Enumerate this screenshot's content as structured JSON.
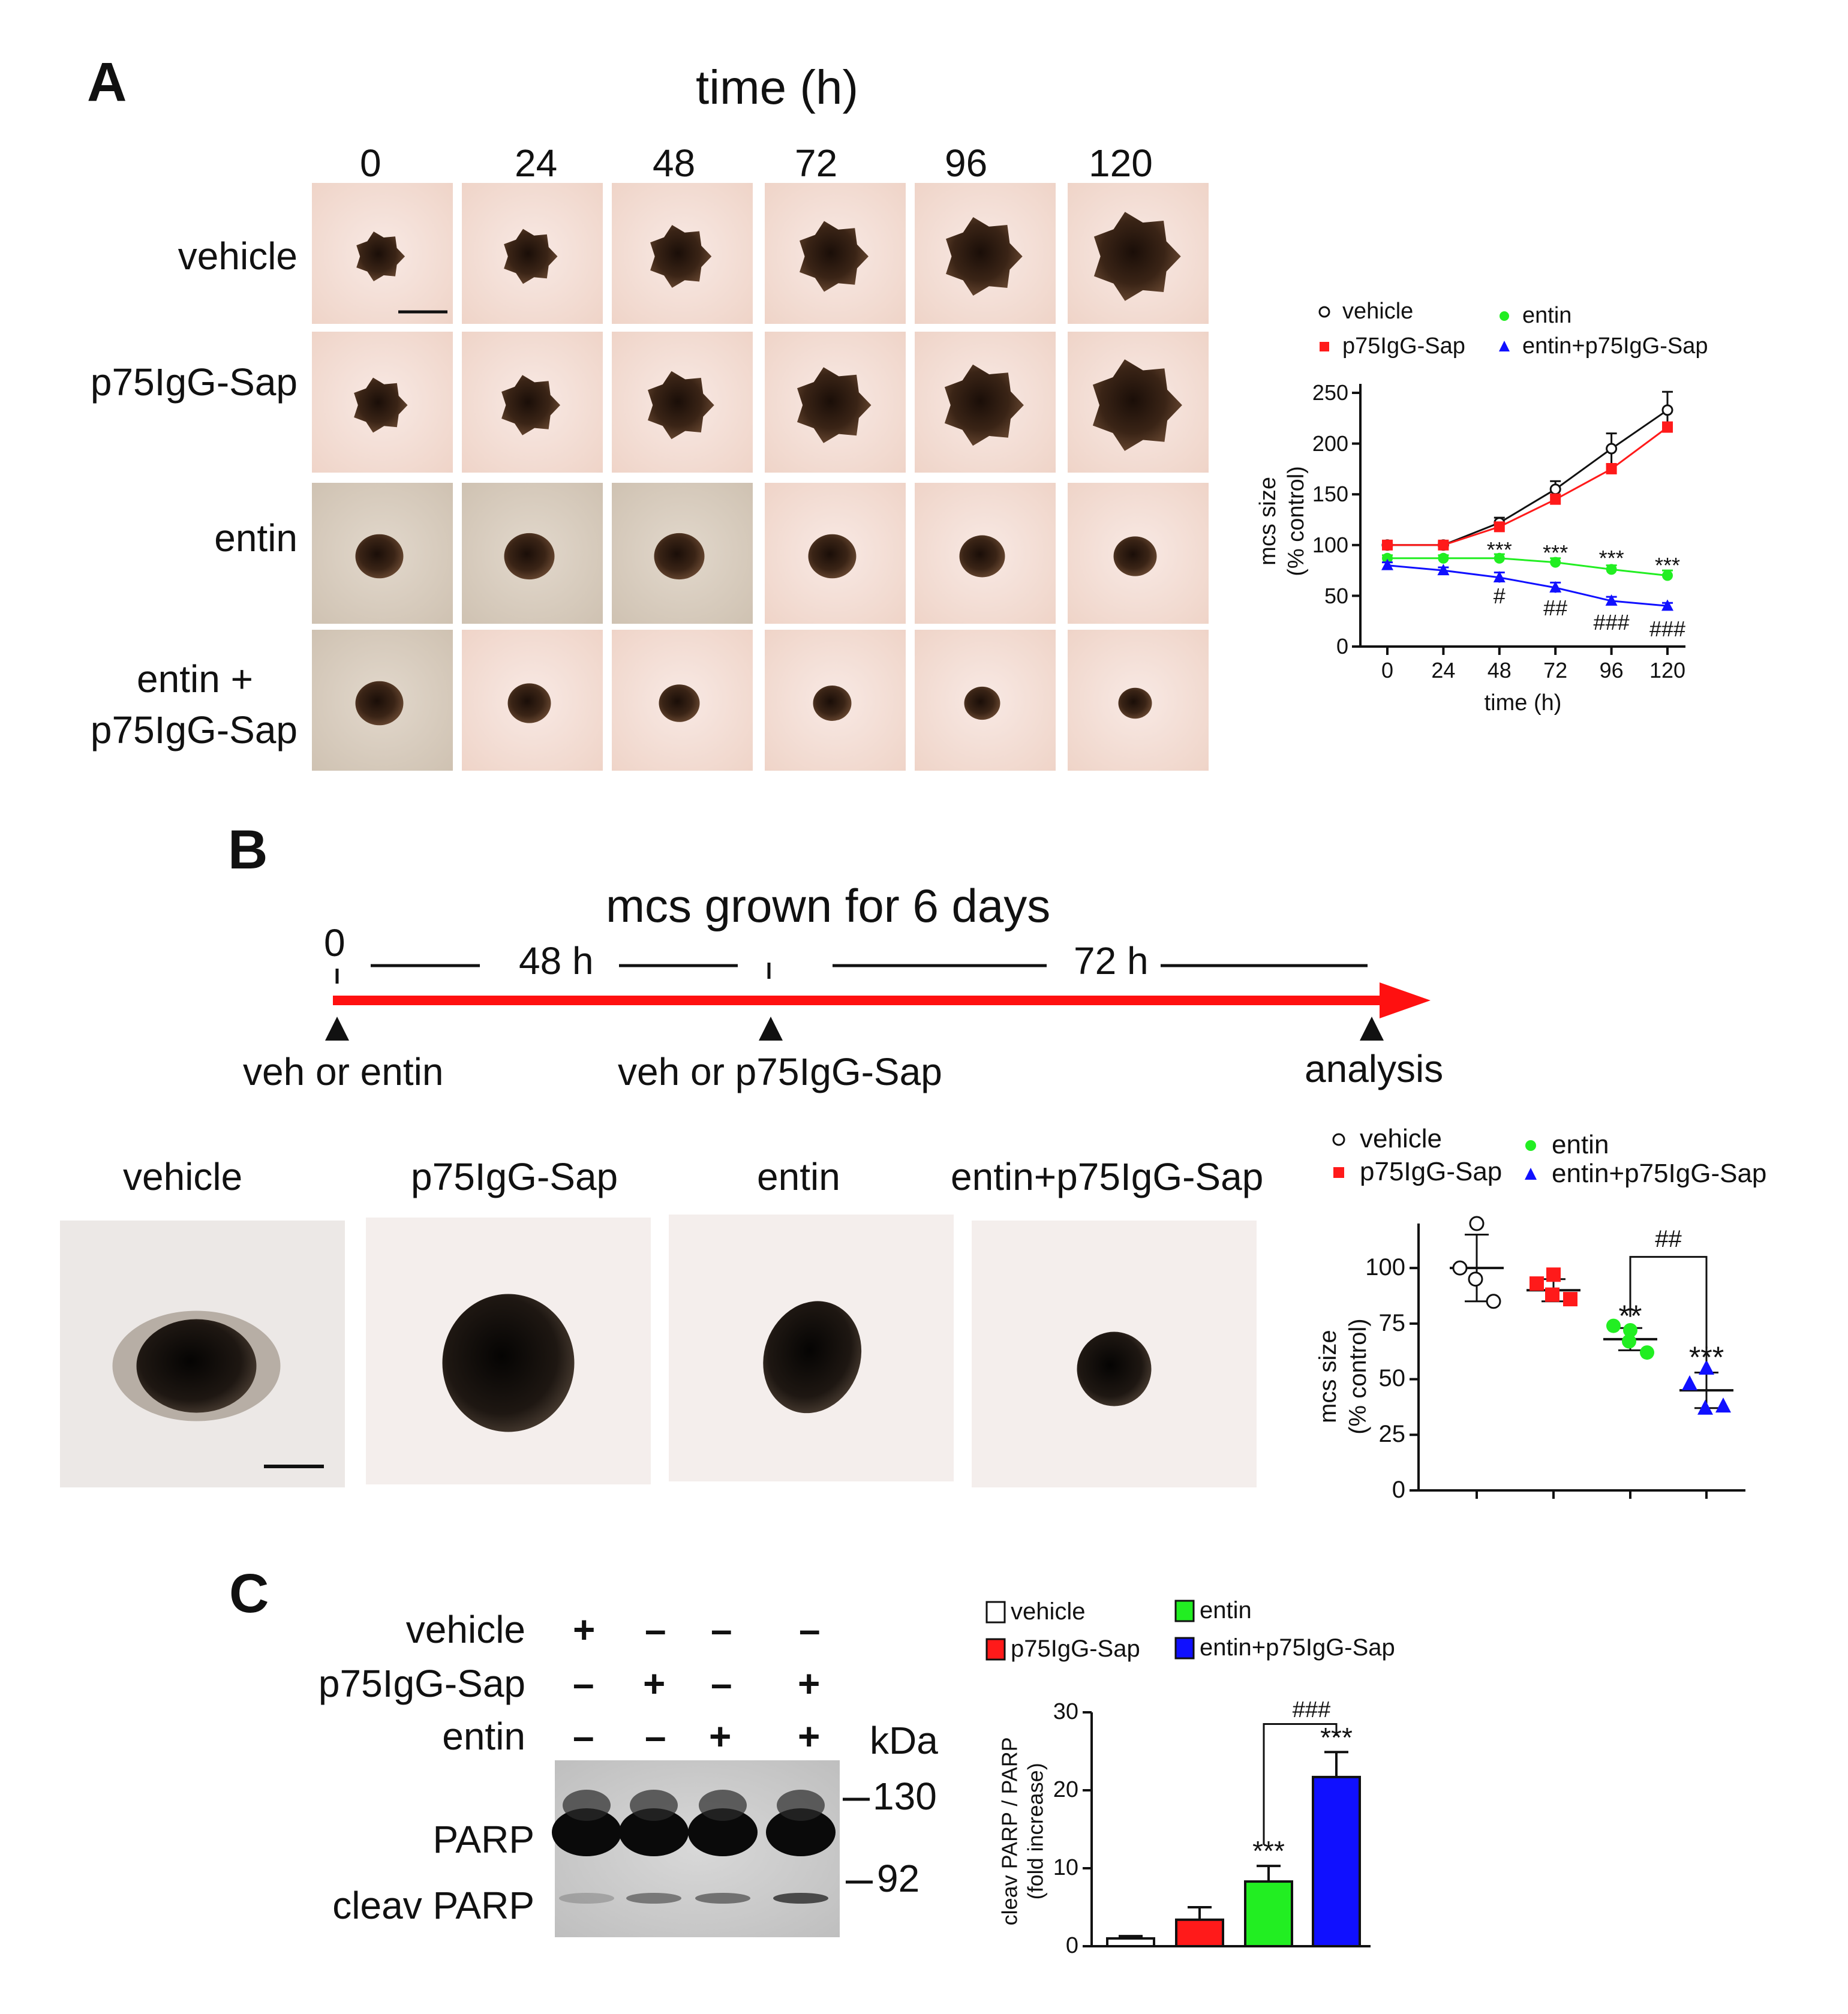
{
  "panel_labels": {
    "a": "A",
    "b": "B",
    "c": "C"
  },
  "panel_a": {
    "header": "time (h)",
    "timepoints": [
      "0",
      "24",
      "48",
      "72",
      "96",
      "120"
    ],
    "rows": [
      "vehicle",
      "p75IgG-Sap",
      "entin",
      "entin +\np75IgG-Sap"
    ],
    "row_line1": "entin +",
    "row_line2": "p75IgG-Sap"
  },
  "panel_b": {
    "title": "mcs grown for 6 days",
    "timeline": {
      "start": "0",
      "seg1": "48 h",
      "seg2": "72 h",
      "events": [
        "veh or entin",
        "veh or p75IgG-Sap",
        "analysis"
      ]
    },
    "images": [
      "vehicle",
      "p75IgG-Sap",
      "entin",
      "entin+p75IgG-Sap"
    ]
  },
  "panel_c": {
    "treatments": [
      {
        "name": "vehicle",
        "lanes": [
          "+",
          "–",
          "–",
          "–"
        ]
      },
      {
        "name": "p75IgG-Sap",
        "lanes": [
          "–",
          "+",
          "–",
          "+"
        ]
      },
      {
        "name": "entin",
        "lanes": [
          "–",
          "–",
          "+",
          "+"
        ]
      }
    ],
    "kda_label": "kDa",
    "markers": [
      "130",
      "92"
    ],
    "band_labels": [
      "PARP",
      "cleav PARP"
    ]
  },
  "colors": {
    "vehicle": "#ffffff",
    "p75IgG-Sap": "#ff1a1a",
    "entin": "#22ee22",
    "entin+p75IgG-Sap": "#1010ff",
    "arrow": "#ff1010"
  },
  "chart_data": [
    {
      "type": "line",
      "title": "",
      "xlabel": "time (h)",
      "ylabel": "mcs size (% control)",
      "x": [
        0,
        24,
        48,
        72,
        96,
        120
      ],
      "xlim": [
        0,
        120
      ],
      "ylim": [
        0,
        250
      ],
      "yticks": [
        0,
        50,
        100,
        150,
        200,
        250
      ],
      "legend": [
        "vehicle",
        "entin",
        "p75IgG-Sap",
        "entin+p75IgG-Sap"
      ],
      "series": [
        {
          "name": "vehicle",
          "values": [
            100,
            100,
            122,
            155,
            195,
            233
          ],
          "errors": [
            3,
            3,
            5,
            8,
            15,
            18
          ]
        },
        {
          "name": "p75IgG-Sap",
          "values": [
            100,
            100,
            118,
            145,
            175,
            216
          ],
          "errors": [
            2,
            2,
            4,
            5,
            5,
            5
          ]
        },
        {
          "name": "entin",
          "values": [
            87,
            87,
            87,
            83,
            76,
            70
          ],
          "errors": [
            3,
            3,
            4,
            4,
            4,
            5
          ]
        },
        {
          "name": "entin+p75IgG-Sap",
          "values": [
            80,
            75,
            68,
            58,
            45,
            40
          ],
          "errors": [
            3,
            3,
            5,
            5,
            4,
            3
          ]
        }
      ],
      "annotations": [
        {
          "text": "***",
          "x": 48,
          "y": 95
        },
        {
          "text": "***",
          "x": 72,
          "y": 92
        },
        {
          "text": "***",
          "x": 96,
          "y": 87
        },
        {
          "text": "***",
          "x": 120,
          "y": 80
        },
        {
          "text": "#",
          "x": 48,
          "y": 50
        },
        {
          "text": "##",
          "x": 72,
          "y": 38
        },
        {
          "text": "###",
          "x": 96,
          "y": 24
        },
        {
          "text": "###",
          "x": 120,
          "y": 17
        }
      ]
    },
    {
      "type": "scatter",
      "title": "",
      "ylabel": "mcs size (% control)",
      "categories": [
        "vehicle",
        "p75IgG-Sap",
        "entin",
        "entin+p75IgG-Sap"
      ],
      "ylim": [
        0,
        120
      ],
      "yticks": [
        0,
        25,
        50,
        75,
        100
      ],
      "legend": [
        "vehicle",
        "entin",
        "p75IgG-Sap",
        "entin+p75IgG-Sap"
      ],
      "series": [
        {
          "name": "vehicle",
          "points": [
            120,
            100,
            85,
            95
          ],
          "mean": 100,
          "sd": 15
        },
        {
          "name": "p75IgG-Sap",
          "points": [
            97,
            93,
            86,
            88
          ],
          "mean": 90,
          "sd": 5
        },
        {
          "name": "entin",
          "points": [
            72,
            74,
            62,
            67
          ],
          "mean": 68,
          "sd": 5
        },
        {
          "name": "entin+p75IgG-Sap",
          "points": [
            55,
            48,
            38,
            37
          ],
          "mean": 45,
          "sd": 8
        }
      ],
      "annotations": [
        {
          "text": "**",
          "category": "entin"
        },
        {
          "text": "***",
          "category": "entin+p75IgG-Sap"
        },
        {
          "text": "##",
          "bracket": [
            "entin",
            "entin+p75IgG-Sap"
          ]
        }
      ]
    },
    {
      "type": "bar",
      "title": "",
      "ylabel": "cleav PARP / PARP (fold increase)",
      "categories": [
        "vehicle",
        "p75IgG-Sap",
        "entin",
        "entin+p75IgG-Sap"
      ],
      "values": [
        1,
        3.4,
        8.3,
        21.7
      ],
      "errors": [
        0.3,
        1.6,
        2.0,
        3.2
      ],
      "ylim": [
        0,
        30
      ],
      "yticks": [
        0,
        10,
        20,
        30
      ],
      "legend": [
        "vehicle",
        "entin",
        "p75IgG-Sap",
        "entin+p75IgG-Sap"
      ],
      "annotations": [
        {
          "text": "***",
          "category": "entin"
        },
        {
          "text": "***",
          "category": "entin+p75IgG-Sap"
        },
        {
          "text": "###",
          "bracket": [
            "entin",
            "entin+p75IgG-Sap"
          ]
        }
      ]
    }
  ]
}
